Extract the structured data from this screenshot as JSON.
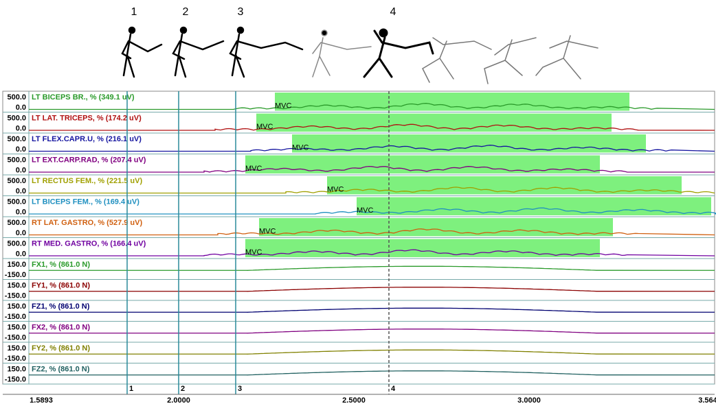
{
  "header": {
    "phases": [
      "1",
      "2",
      "3",
      "4"
    ]
  },
  "channels": [
    {
      "label": "LT BICEPS BR., % (349.1 uV)",
      "top": "500.0",
      "bottom": "0.0",
      "mvc": "MVC",
      "color": "#2a9a2a"
    },
    {
      "label": "LT LAT. TRICEPS, % (174.2 uV)",
      "top": "500.0",
      "bottom": "0.0",
      "mvc": "MVC",
      "color": "#b01010"
    },
    {
      "label": "LT FLEX.CAPR.U, % (216.1 uV)",
      "top": "500.0",
      "bottom": "0.0",
      "mvc": "MVC",
      "color": "#1515a0"
    },
    {
      "label": "LT EXT.CARP.RAD, % (207.4 uV)",
      "top": "500.0",
      "bottom": "0.0",
      "mvc": "MVC",
      "color": "#800080"
    },
    {
      "label": "LT RECTUS FEM., % (221.5 uV)",
      "top": "500.0",
      "bottom": "0.0",
      "mvc": "MVC",
      "color": "#a0a000"
    },
    {
      "label": "LT BICEPS FEM., % (169.4 uV)",
      "top": "500.0",
      "bottom": "0.0",
      "mvc": "MVC",
      "color": "#2090c0"
    },
    {
      "label": "RT LAT. GASTRO, % (527.9 uV)",
      "top": "500.0",
      "bottom": "0.0",
      "mvc": "MVC",
      "color": "#d06010"
    },
    {
      "label": "RT MED. GASTRO, % (166.4 uV)",
      "top": "500.0",
      "bottom": "0.0",
      "mvc": "MVC",
      "color": "#7000a0"
    },
    {
      "label": "FX1, % (861.0 N)",
      "top": "150.0",
      "bottom": "-150.0",
      "color": "#2a9a2a"
    },
    {
      "label": "FY1, % (861.0 N)",
      "top": "150.0",
      "bottom": "-150.0",
      "color": "#8b0000"
    },
    {
      "label": "FZ1, % (861.0 N)",
      "top": "150.0",
      "bottom": "-150.0",
      "color": "#000070"
    },
    {
      "label": "FX2, % (861.0 N)",
      "top": "150.0",
      "bottom": "-150.0",
      "color": "#800080"
    },
    {
      "label": "FY2, % (861.0 N)",
      "top": "150.0",
      "bottom": "-150.0",
      "color": "#808000"
    },
    {
      "label": "FZ2, % (861.0 N)",
      "top": "150.0",
      "bottom": "-150.0",
      "color": "#206060"
    }
  ],
  "time_axis": [
    "1.5893",
    "2.0000",
    "2.5000",
    "3.0000",
    "3.564"
  ],
  "cursors": [
    "1",
    "2",
    "3",
    "4"
  ]
}
